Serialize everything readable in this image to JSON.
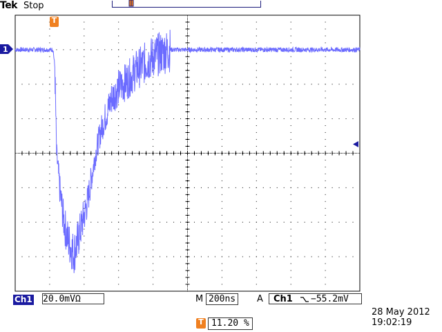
{
  "header": {
    "brand": "Tek",
    "acquisition_status": "Stop"
  },
  "markers": {
    "trigger_position": "T",
    "channel_marker": "1"
  },
  "status_bar": {
    "channel_label": "Ch1",
    "channel_scale": "20.0mVΩ",
    "timebase_prefix": "M",
    "timebase": "200ns",
    "trigger_mode_prefix": "A",
    "trigger_source": "Ch1",
    "trigger_level": "−55.2mV",
    "trigger_position_badge": "T",
    "trigger_position_percent": "11.20 %"
  },
  "datetime": {
    "date": "28 May 2012",
    "time": "19:02:19"
  },
  "colors": {
    "trace": "#6b6bff",
    "graticule": "#000000",
    "marker": "#1a1aa0",
    "trigger_badge": "#f08020"
  },
  "chart_data": {
    "type": "line",
    "title": "",
    "xlabel": "",
    "ylabel": "",
    "x_divisions": 10,
    "y_divisions": 8,
    "x_unit_per_div": "200ns",
    "y_unit_per_div": "20.0mV",
    "xlim": [
      -1000,
      1000
    ],
    "ylim": [
      -80,
      80
    ],
    "series": [
      {
        "x": [
          -1000,
          -780,
          -770,
          -760,
          -740,
          -720,
          -700,
          -680,
          -660,
          -640,
          -620,
          -600,
          -580,
          -560,
          -540,
          -520,
          -500,
          -480,
          -460,
          -440,
          -400,
          -350,
          -300,
          -250,
          -200,
          -150,
          -100,
          -50,
          0,
          100,
          200,
          300,
          400,
          500,
          600,
          700,
          800,
          900,
          1000
        ],
        "y": [
          60,
          60,
          50,
          0,
          -22,
          -38,
          -48,
          -54,
          -58,
          -52,
          -44,
          -36,
          -28,
          -16,
          -4,
          6,
          14,
          20,
          26,
          32,
          38,
          42,
          48,
          52,
          56,
          58,
          60,
          60,
          60,
          60,
          60,
          60,
          60,
          60,
          60,
          60,
          60,
          60,
          60
        ]
      }
    ],
    "grid": true
  }
}
